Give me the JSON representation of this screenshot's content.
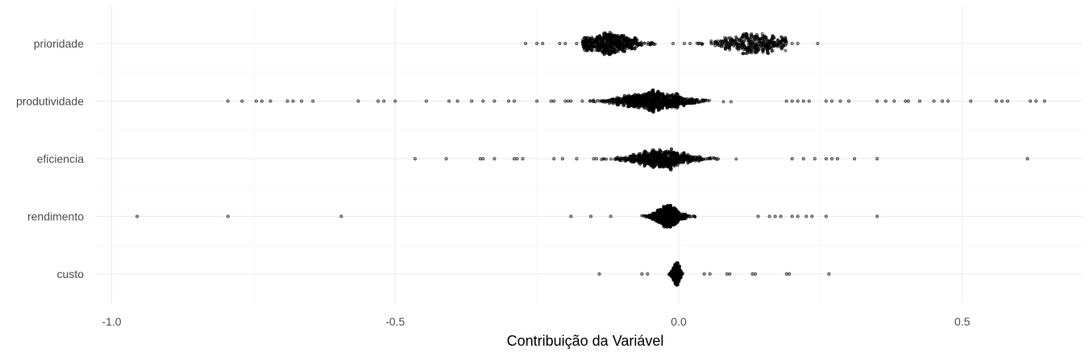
{
  "chart_data": {
    "type": "scatter",
    "subtype": "beeswarm",
    "title": "",
    "xlabel": "Contribuição da Variável",
    "ylabel": "",
    "xlim": [
      -1.02,
      0.71
    ],
    "x_ticks": [
      -1.0,
      -0.5,
      0.0,
      0.5
    ],
    "x_tick_labels": [
      "-1.0",
      "-0.5",
      "0.0",
      "0.5"
    ],
    "categories": [
      "prioridade",
      "produtividade",
      "eficiencia",
      "rendimento",
      "custo"
    ],
    "grid": true,
    "legend": "none",
    "point_color": "#000000",
    "series": [
      {
        "category": "prioridade",
        "outliers": [
          -0.27,
          -0.25,
          -0.24,
          -0.21,
          -0.2,
          -0.18,
          -0.01,
          0.01,
          0.02,
          0.035,
          0.04,
          0.19,
          0.2,
          0.21,
          0.245
        ],
        "clusters": [
          {
            "min": -0.17,
            "max": -0.04,
            "center": -0.12,
            "spread": 0.03,
            "n": 650
          },
          {
            "min": 0.03,
            "max": 0.19,
            "center": 0.13,
            "spread": 0.035,
            "n": 420
          }
        ]
      },
      {
        "category": "produtividade",
        "outliers": [
          -0.795,
          -0.77,
          -0.745,
          -0.735,
          -0.72,
          -0.69,
          -0.68,
          -0.665,
          -0.645,
          -0.565,
          -0.53,
          -0.52,
          -0.5,
          -0.445,
          -0.405,
          -0.39,
          -0.365,
          -0.345,
          -0.325,
          -0.3,
          -0.29,
          -0.25,
          -0.225,
          -0.22,
          -0.2,
          -0.195,
          -0.19,
          -0.17,
          0.19,
          0.2,
          0.21,
          0.22,
          0.23,
          0.26,
          0.27,
          0.285,
          0.3,
          0.35,
          0.365,
          0.38,
          0.4,
          0.405,
          0.425,
          0.45,
          0.465,
          0.475,
          0.515,
          0.56,
          0.57,
          0.58,
          0.62,
          0.63,
          0.645
        ],
        "clusters": [
          {
            "min": -0.16,
            "max": 0.18,
            "center": -0.045,
            "spread": 0.04,
            "n": 950
          }
        ]
      },
      {
        "category": "eficiencia",
        "outliers": [
          -0.465,
          -0.41,
          -0.35,
          -0.345,
          -0.325,
          -0.29,
          -0.285,
          -0.275,
          -0.22,
          -0.205,
          -0.18,
          -0.15,
          -0.145,
          0.2,
          0.22,
          0.24,
          0.26,
          0.27,
          0.28,
          0.31,
          0.35,
          0.615
        ],
        "clusters": [
          {
            "min": -0.14,
            "max": 0.19,
            "center": -0.03,
            "spread": 0.035,
            "n": 800
          }
        ]
      },
      {
        "category": "rendimento",
        "outliers": [
          -0.955,
          -0.795,
          -0.595,
          -0.19,
          -0.155,
          -0.12,
          0.14,
          0.16,
          0.17,
          0.18,
          0.2,
          0.21,
          0.225,
          0.235,
          0.26,
          0.35
        ],
        "clusters": [
          {
            "min": -0.11,
            "max": 0.13,
            "center": -0.02,
            "spread": 0.015,
            "n": 850
          }
        ]
      },
      {
        "category": "custo",
        "outliers": [
          -0.14,
          -0.065,
          -0.055,
          0.045,
          0.055,
          0.085,
          0.09,
          0.13,
          0.135,
          0.19,
          0.195,
          0.265
        ],
        "clusters": [
          {
            "min": -0.02,
            "max": 0.03,
            "center": -0.004,
            "spread": 0.004,
            "n": 650
          }
        ]
      }
    ]
  }
}
